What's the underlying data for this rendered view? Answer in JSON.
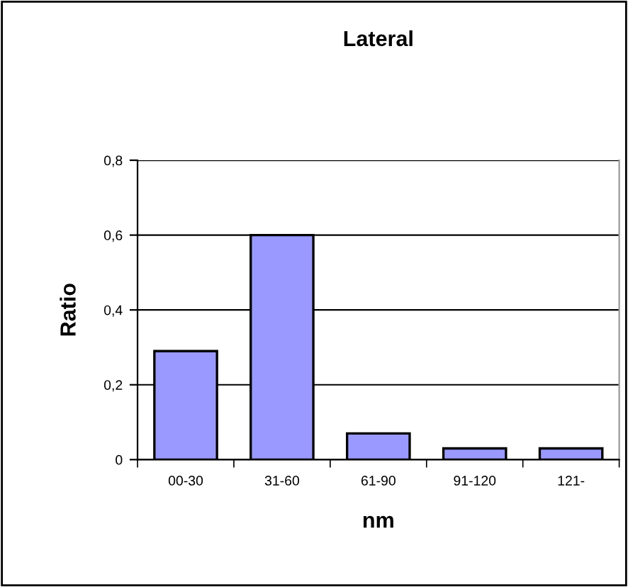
{
  "chart_data": {
    "type": "bar",
    "title": "Lateral",
    "xlabel": "nm",
    "ylabel": "Ratio",
    "categories": [
      "00-30",
      "31-60",
      "61-90",
      "91-120",
      "121-"
    ],
    "values": [
      0.29,
      0.6,
      0.07,
      0.03,
      0.03
    ],
    "color": "#9999ff",
    "ylim": [
      0,
      0.8
    ],
    "yticks": [
      {
        "value": 0,
        "label": "0"
      },
      {
        "value": 0.2,
        "label": "0,2"
      },
      {
        "value": 0.4,
        "label": "0,4"
      },
      {
        "value": 0.6,
        "label": "0,6"
      },
      {
        "value": 0.8,
        "label": "0,8"
      }
    ],
    "grid": "y",
    "legend": false
  }
}
